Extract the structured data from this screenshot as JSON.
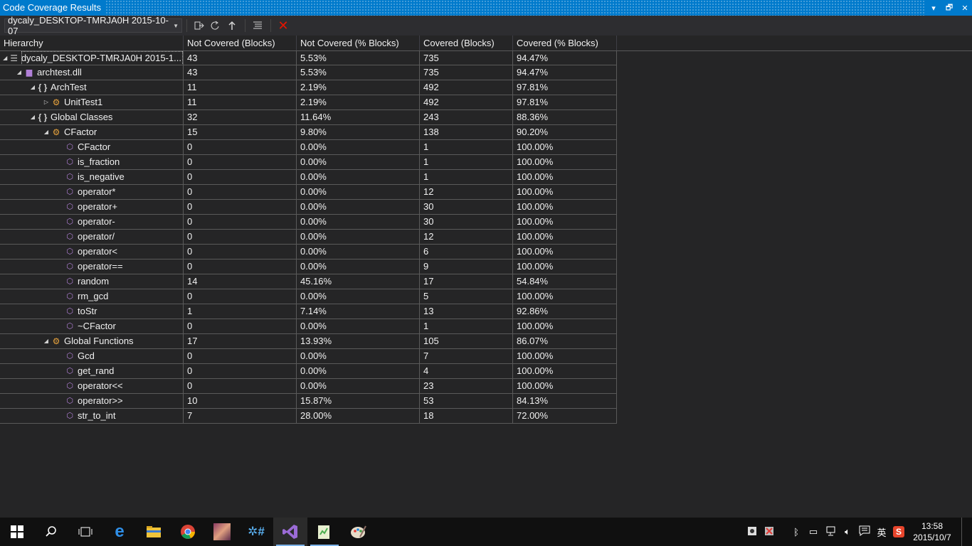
{
  "window": {
    "title": "Code Coverage Results",
    "controls": [
      "▾",
      "🗗",
      "✕"
    ]
  },
  "toolbar": {
    "run_selector": "dycaly_DESKTOP-TMRJA0H 2015-10-07"
  },
  "grid": {
    "headers": [
      "Hierarchy",
      "Not Covered (Blocks)",
      "Not Covered (% Blocks)",
      "Covered (Blocks)",
      "Covered (% Blocks)"
    ],
    "rows": [
      {
        "level": 0,
        "expander": "◢",
        "icon": "coverage-run-icon",
        "name": "dycaly_DESKTOP-TMRJA0H 2015-1...",
        "nc": "43",
        "ncp": "5.53%",
        "c": "735",
        "cp": "94.47%",
        "selected": true
      },
      {
        "level": 1,
        "expander": "◢",
        "icon": "assembly-icon",
        "name": "archtest.dll",
        "nc": "43",
        "ncp": "5.53%",
        "c": "735",
        "cp": "94.47%"
      },
      {
        "level": 2,
        "expander": "◢",
        "icon": "namespace-icon",
        "name": "ArchTest",
        "nc": "11",
        "ncp": "2.19%",
        "c": "492",
        "cp": "97.81%"
      },
      {
        "level": 3,
        "expander": "▷",
        "icon": "class-icon",
        "name": "UnitTest1",
        "nc": "11",
        "ncp": "2.19%",
        "c": "492",
        "cp": "97.81%"
      },
      {
        "level": 2,
        "expander": "◢",
        "icon": "namespace-icon",
        "name": "Global Classes",
        "nc": "32",
        "ncp": "11.64%",
        "c": "243",
        "cp": "88.36%"
      },
      {
        "level": 3,
        "expander": "◢",
        "icon": "class-icon",
        "name": "CFactor",
        "nc": "15",
        "ncp": "9.80%",
        "c": "138",
        "cp": "90.20%"
      },
      {
        "level": 4,
        "expander": "",
        "icon": "method-icon",
        "name": "CFactor",
        "nc": "0",
        "ncp": "0.00%",
        "c": "1",
        "cp": "100.00%"
      },
      {
        "level": 4,
        "expander": "",
        "icon": "method-icon",
        "name": "is_fraction",
        "nc": "0",
        "ncp": "0.00%",
        "c": "1",
        "cp": "100.00%"
      },
      {
        "level": 4,
        "expander": "",
        "icon": "method-icon",
        "name": "is_negative",
        "nc": "0",
        "ncp": "0.00%",
        "c": "1",
        "cp": "100.00%"
      },
      {
        "level": 4,
        "expander": "",
        "icon": "method-icon",
        "name": "operator*",
        "nc": "0",
        "ncp": "0.00%",
        "c": "12",
        "cp": "100.00%"
      },
      {
        "level": 4,
        "expander": "",
        "icon": "method-icon",
        "name": "operator+",
        "nc": "0",
        "ncp": "0.00%",
        "c": "30",
        "cp": "100.00%"
      },
      {
        "level": 4,
        "expander": "",
        "icon": "method-icon",
        "name": "operator-",
        "nc": "0",
        "ncp": "0.00%",
        "c": "30",
        "cp": "100.00%"
      },
      {
        "level": 4,
        "expander": "",
        "icon": "method-icon",
        "name": "operator/",
        "nc": "0",
        "ncp": "0.00%",
        "c": "12",
        "cp": "100.00%"
      },
      {
        "level": 4,
        "expander": "",
        "icon": "method-icon",
        "name": "operator<",
        "nc": "0",
        "ncp": "0.00%",
        "c": "6",
        "cp": "100.00%"
      },
      {
        "level": 4,
        "expander": "",
        "icon": "method-icon",
        "name": "operator==",
        "nc": "0",
        "ncp": "0.00%",
        "c": "9",
        "cp": "100.00%"
      },
      {
        "level": 4,
        "expander": "",
        "icon": "method-icon",
        "name": "random",
        "nc": "14",
        "ncp": "45.16%",
        "c": "17",
        "cp": "54.84%"
      },
      {
        "level": 4,
        "expander": "",
        "icon": "method-icon",
        "name": "rm_gcd",
        "nc": "0",
        "ncp": "0.00%",
        "c": "5",
        "cp": "100.00%"
      },
      {
        "level": 4,
        "expander": "",
        "icon": "method-icon",
        "name": "toStr",
        "nc": "1",
        "ncp": "7.14%",
        "c": "13",
        "cp": "92.86%"
      },
      {
        "level": 4,
        "expander": "",
        "icon": "method-icon",
        "name": "~CFactor",
        "nc": "0",
        "ncp": "0.00%",
        "c": "1",
        "cp": "100.00%"
      },
      {
        "level": 3,
        "expander": "◢",
        "icon": "class-icon",
        "name": "Global Functions",
        "nc": "17",
        "ncp": "13.93%",
        "c": "105",
        "cp": "86.07%"
      },
      {
        "level": 4,
        "expander": "",
        "icon": "method-icon",
        "name": "Gcd",
        "nc": "0",
        "ncp": "0.00%",
        "c": "7",
        "cp": "100.00%"
      },
      {
        "level": 4,
        "expander": "",
        "icon": "method-icon",
        "name": "get_rand",
        "nc": "0",
        "ncp": "0.00%",
        "c": "4",
        "cp": "100.00%"
      },
      {
        "level": 4,
        "expander": "",
        "icon": "method-icon",
        "name": "operator<<",
        "nc": "0",
        "ncp": "0.00%",
        "c": "23",
        "cp": "100.00%"
      },
      {
        "level": 4,
        "expander": "",
        "icon": "method-icon",
        "name": "operator>>",
        "nc": "10",
        "ncp": "15.87%",
        "c": "53",
        "cp": "84.13%"
      },
      {
        "level": 4,
        "expander": "",
        "icon": "method-icon",
        "name": "str_to_int",
        "nc": "7",
        "ncp": "28.00%",
        "c": "18",
        "cp": "72.00%"
      }
    ]
  },
  "taskbar": {
    "tray_ime": "英",
    "time": "13:58",
    "date": "2015/10/7"
  },
  "colors": {
    "accent": "#007acc",
    "background": "#252526",
    "toolbar": "#2d2d30",
    "taskbar": "#101010"
  }
}
